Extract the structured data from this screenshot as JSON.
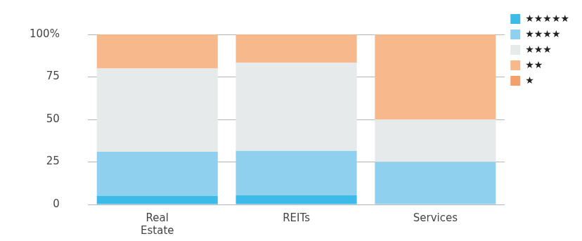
{
  "chart_data": {
    "type": "bar",
    "stacked": true,
    "grid": true,
    "legend": "top-right",
    "categories": [
      "Real Estate",
      "REITs",
      "Services"
    ],
    "ylim": [
      0,
      100
    ],
    "yticks": [
      0,
      25,
      50,
      75,
      {
        "value": 100,
        "label": "100%"
      }
    ],
    "series": [
      {
        "name": "★★★★★",
        "color": "#3dbbe8",
        "values": [
          5,
          5.5,
          0
        ]
      },
      {
        "name": "★★★★",
        "color": "#8fd0ee",
        "values": [
          26,
          26,
          25
        ]
      },
      {
        "name": "★★★",
        "color": "#e6eaea",
        "values": [
          49,
          52,
          25
        ]
      },
      {
        "name": "★★",
        "color": "#f7b98b",
        "values": [
          20,
          16.5,
          50
        ]
      },
      {
        "name": "★",
        "color": "#f4a06c",
        "values": [
          0,
          0,
          0
        ]
      }
    ]
  }
}
